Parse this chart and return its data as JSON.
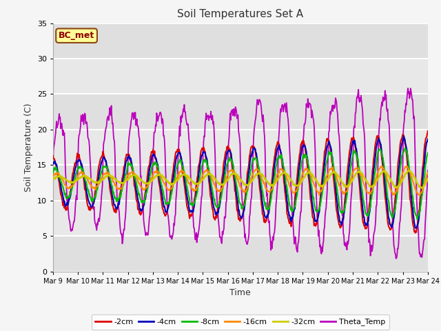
{
  "title": "Soil Temperatures Set A",
  "xlabel": "Time",
  "ylabel": "Soil Temperature (C)",
  "ylim": [
    0,
    35
  ],
  "annotation_text": "BC_met",
  "annotation_bg": "#FFFF99",
  "annotation_border": "#8B4513",
  "series": {
    "neg2cm": {
      "label": "-2cm",
      "color": "#DD0000"
    },
    "neg4cm": {
      "label": "-4cm",
      "color": "#0000BB"
    },
    "neg8cm": {
      "label": "-8cm",
      "color": "#00BB00"
    },
    "neg16cm": {
      "label": "-16cm",
      "color": "#FF8800"
    },
    "neg32cm": {
      "label": "-32cm",
      "color": "#CCCC00"
    },
    "theta": {
      "label": "Theta_Temp",
      "color": "#BB00BB"
    }
  },
  "x_tick_labels": [
    "Mar 9",
    "Mar 10",
    "Mar 11",
    "Mar 12",
    "Mar 13",
    "Mar 14",
    "Mar 15",
    "Mar 16",
    "Mar 17",
    "Mar 18",
    "Mar 19",
    "Mar 20",
    "Mar 21",
    "Mar 22",
    "Mar 23",
    "Mar 24"
  ],
  "grid_color": "#CCCCCC",
  "fig_bg": "#F5F5F5",
  "plot_bg": "#E8E8E8",
  "n_days": 15,
  "pts_per_day": 48
}
